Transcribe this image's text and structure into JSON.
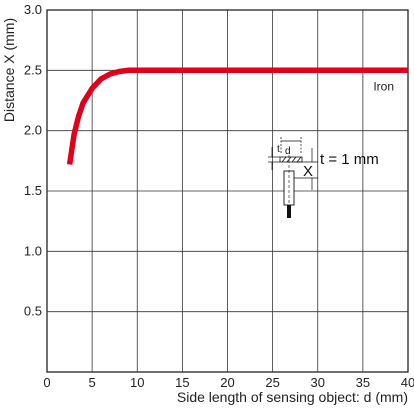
{
  "chart_data": {
    "type": "line",
    "xlabel": "Side length of sensing object: d (mm)",
    "ylabel": "Distance X (mm)",
    "xlim": [
      0,
      40
    ],
    "ylim": [
      0,
      3.0
    ],
    "x_ticks": [
      "0",
      "5",
      "10",
      "15",
      "20",
      "25",
      "30",
      "35",
      "40"
    ],
    "y_ticks": [
      "0.5",
      "1.0",
      "1.5",
      "2.0",
      "2.5",
      "3.0"
    ],
    "grid": true,
    "series": [
      {
        "name": "Iron",
        "color": "#e0001b",
        "x": [
          2.5,
          3.0,
          3.5,
          4.0,
          5.0,
          6.0,
          7.0,
          8.0,
          9.0,
          10.0,
          15.0,
          20.0,
          25.0,
          30.0,
          35.0,
          40.0
        ],
        "y": [
          1.72,
          1.97,
          2.12,
          2.23,
          2.35,
          2.43,
          2.47,
          2.49,
          2.5,
          2.5,
          2.5,
          2.5,
          2.5,
          2.5,
          2.5,
          2.5
        ]
      }
    ],
    "annotations": {
      "condition": "t = 1 mm",
      "inset_labels": [
        "t",
        "d",
        "X"
      ]
    }
  }
}
